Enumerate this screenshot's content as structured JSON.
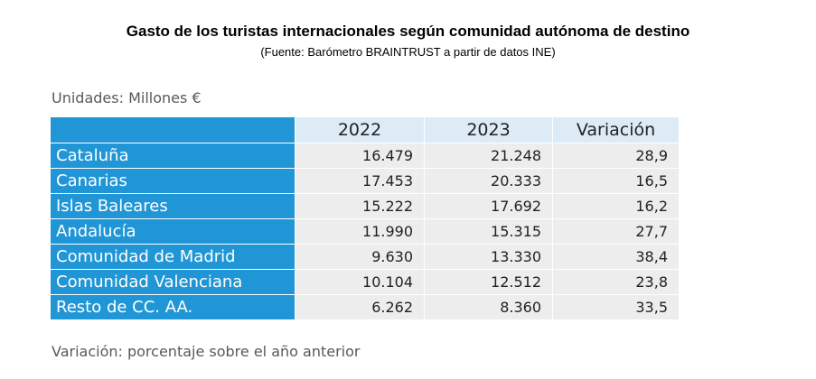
{
  "title": "Gasto de los turistas internacionales según comunidad autónoma de destino",
  "subtitle": "(Fuente: Barómetro BRAINTRUST a partir de datos INE)",
  "units": "Unidades: Millones €",
  "footnote": "Variación: porcentaje sobre el año anterior",
  "colors": {
    "header_blue": "#2196D6",
    "header_light": "#DDEBF7",
    "cell_grey": "#EDEDED",
    "note_grey": "#595959"
  },
  "table": {
    "headers": [
      "",
      "2022",
      "2023",
      "Variación"
    ],
    "rows": [
      {
        "region": "Cataluña",
        "y2022": "16.479",
        "y2023": "21.248",
        "variacion": "28,9"
      },
      {
        "region": "Canarias",
        "y2022": "17.453",
        "y2023": "20.333",
        "variacion": "16,5"
      },
      {
        "region": "Islas Baleares",
        "y2022": "15.222",
        "y2023": "17.692",
        "variacion": "16,2"
      },
      {
        "region": "Andalucía",
        "y2022": "11.990",
        "y2023": "15.315",
        "variacion": "27,7"
      },
      {
        "region": "Comunidad de Madrid",
        "y2022": "9.630",
        "y2023": "13.330",
        "variacion": "38,4"
      },
      {
        "region": "Comunidad Valenciana",
        "y2022": "10.104",
        "y2023": "12.512",
        "variacion": "23,8"
      },
      {
        "region": "Resto de CC. AA.",
        "y2022": "6.262",
        "y2023": "8.360",
        "variacion": "33,5"
      }
    ]
  }
}
